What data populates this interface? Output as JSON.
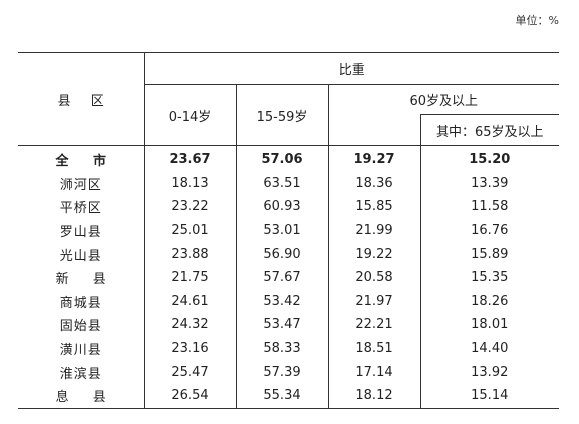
{
  "unit_label": "单位：%",
  "table": {
    "header": {
      "county_col": "县 区",
      "group_label": "比重",
      "age_0_14": "0-14岁",
      "age_15_59": "15-59岁",
      "age_60_plus": "60岁及以上",
      "age_65_plus": "其中：65岁及以上"
    },
    "rows": [
      {
        "county": "全 市",
        "a": "23.67",
        "b": "57.06",
        "c": "19.27",
        "d": "15.20"
      },
      {
        "county": "浉河区",
        "a": "18.13",
        "b": "63.51",
        "c": "18.36",
        "d": "13.39"
      },
      {
        "county": "平桥区",
        "a": "23.22",
        "b": "60.93",
        "c": "15.85",
        "d": "11.58"
      },
      {
        "county": "罗山县",
        "a": "25.01",
        "b": "53.01",
        "c": "21.99",
        "d": "16.76"
      },
      {
        "county": "光山县",
        "a": "23.88",
        "b": "56.90",
        "c": "19.22",
        "d": "15.89"
      },
      {
        "county": "新 县",
        "a": "21.75",
        "b": "57.67",
        "c": "20.58",
        "d": "15.35"
      },
      {
        "county": "商城县",
        "a": "24.61",
        "b": "53.42",
        "c": "21.97",
        "d": "18.26"
      },
      {
        "county": "固始县",
        "a": "24.32",
        "b": "53.47",
        "c": "22.21",
        "d": "18.01"
      },
      {
        "county": "潢川县",
        "a": "23.16",
        "b": "58.33",
        "c": "18.51",
        "d": "14.40"
      },
      {
        "county": "淮滨县",
        "a": "25.47",
        "b": "57.39",
        "c": "17.14",
        "d": "13.92"
      },
      {
        "county": "息 县",
        "a": "26.54",
        "b": "55.34",
        "c": "18.12",
        "d": "15.14"
      }
    ]
  }
}
